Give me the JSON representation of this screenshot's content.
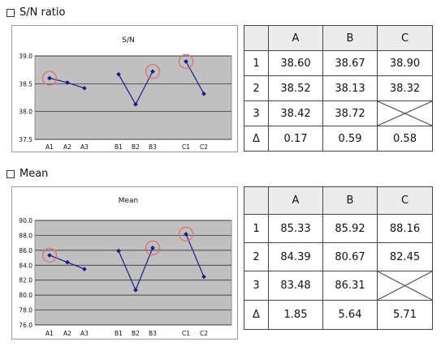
{
  "sections": [
    {
      "heading": "S/N ratio",
      "table": {
        "columns": [
          "",
          "A",
          "B",
          "C"
        ],
        "rows": [
          {
            "label": "1",
            "values": [
              "38.60",
              "38.67",
              "38.90"
            ]
          },
          {
            "label": "2",
            "values": [
              "38.52",
              "38.13",
              "38.32"
            ]
          },
          {
            "label": "3",
            "values": [
              "38.42",
              "38.72",
              ""
            ]
          },
          {
            "label": "Δ",
            "values": [
              "0.17",
              "0.59",
              "0.58"
            ]
          }
        ]
      }
    },
    {
      "heading": "Mean",
      "table": {
        "columns": [
          "",
          "A",
          "B",
          "C"
        ],
        "rows": [
          {
            "label": "1",
            "values": [
              "85.33",
              "85.92",
              "88.16"
            ]
          },
          {
            "label": "2",
            "values": [
              "84.39",
              "80.67",
              "82.45"
            ]
          },
          {
            "label": "3",
            "values": [
              "83.48",
              "86.31",
              ""
            ]
          },
          {
            "label": "Δ",
            "values": [
              "1.85",
              "5.64",
              "5.71"
            ]
          }
        ]
      }
    }
  ],
  "chart_data": [
    {
      "type": "line",
      "title": "S/N",
      "xlabel": "",
      "ylabel": "",
      "ylim": [
        37.5,
        39.0
      ],
      "yticks": [
        "37.5",
        "38.0",
        "38.5",
        "39.0"
      ],
      "grid": true,
      "groups": [
        {
          "categories": [
            "A1",
            "A2",
            "A3"
          ],
          "values": [
            38.6,
            38.52,
            38.42
          ],
          "highlight_index": 0
        },
        {
          "categories": [
            "B1",
            "B2",
            "B3"
          ],
          "values": [
            38.67,
            38.13,
            38.72
          ],
          "highlight_index": 2
        },
        {
          "categories": [
            "C1",
            "C2"
          ],
          "values": [
            38.9,
            38.32
          ],
          "highlight_index": 0
        }
      ],
      "colors": {
        "line": "#1a1a8c",
        "plot_bg": "#c0c0c0",
        "highlight": "#e07070"
      }
    },
    {
      "type": "line",
      "title": "Mean",
      "xlabel": "",
      "ylabel": "",
      "ylim": [
        76.0,
        90.0
      ],
      "yticks": [
        "76.0",
        "78.0",
        "80.0",
        "82.0",
        "84.0",
        "86.0",
        "88.0",
        "90.0"
      ],
      "grid": true,
      "groups": [
        {
          "categories": [
            "A1",
            "A2",
            "A3"
          ],
          "values": [
            85.33,
            84.39,
            83.48
          ],
          "highlight_index": 0
        },
        {
          "categories": [
            "B1",
            "B2",
            "B3"
          ],
          "values": [
            85.92,
            80.67,
            86.31
          ],
          "highlight_index": 2
        },
        {
          "categories": [
            "C1",
            "C2"
          ],
          "values": [
            88.16,
            82.45
          ],
          "highlight_index": 0
        }
      ],
      "colors": {
        "line": "#1a1a8c",
        "plot_bg": "#c0c0c0",
        "highlight": "#e07070"
      }
    }
  ]
}
